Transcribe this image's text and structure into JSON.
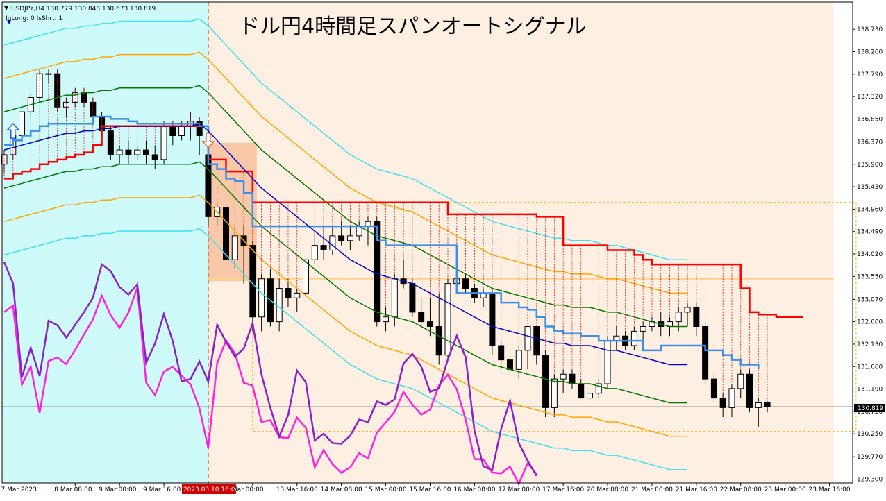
{
  "header": {
    "symbol_line": "USDJPY,H4  130.779 130.848 130.673 130.819",
    "indicator_line": "InLong: 0 IsShrt: 1"
  },
  "title": "ドル円4時間足スパンオートシグナル",
  "price_badge": "130.819",
  "colors": {
    "pre_signal_bg": "#cffafa",
    "zone_bg": "#fdf0e2",
    "entry_box": "#f8c8a8",
    "bull_candle": "#ffffff",
    "bear_candle": "#000000",
    "span_red": "#ff0000",
    "kijun_blue": "#3b8eea",
    "ma_navy": "#0000c8",
    "bb_green": "#007800",
    "bb_orange": "#ffa500",
    "bb_cyan": "#40e0f0",
    "chikou_magenta": "#ff20e0",
    "chikou_purple": "#8a20c8",
    "signal_line": "#e00000"
  },
  "chart_data": {
    "type": "candlestick",
    "symbol": "USDJPY",
    "timeframe": "H4",
    "y_ticks": [
      138.73,
      138.26,
      137.79,
      137.32,
      136.85,
      136.37,
      135.9,
      135.43,
      134.96,
      134.49,
      134.02,
      133.55,
      133.07,
      132.6,
      132.13,
      131.66,
      131.19,
      130.72,
      130.25,
      129.77,
      129.3
    ],
    "y_tick_labels": [
      "138.730",
      "138.260",
      "137.790",
      "137.320",
      "136.850",
      "136.370",
      "135.900",
      "135.430",
      "134.960",
      "134.490",
      "134.020",
      "133.550",
      "133.070",
      "132.600",
      "132.130",
      "131.660",
      "131.190",
      "130.720",
      "130.250",
      "129.770",
      "129.300"
    ],
    "ylim": [
      129.22,
      139.3
    ],
    "x_labels": [
      {
        "bar": 2,
        "text": "7 Mar 2023"
      },
      {
        "bar": 8,
        "text": "8 Mar 08:00"
      },
      {
        "bar": 13,
        "text": "9 Mar 00:00"
      },
      {
        "bar": 18,
        "text": "9 Mar 16:00"
      },
      {
        "bar": 23,
        "text": "2023.03.10 16:00",
        "highlight": true
      },
      {
        "bar": 28,
        "text": "Mar 00:00"
      },
      {
        "bar": 33,
        "text": "13 Mar 16:00"
      },
      {
        "bar": 38,
        "text": "14 Mar 08:00"
      },
      {
        "bar": 43,
        "text": "15 Mar 00:00"
      },
      {
        "bar": 48,
        "text": "15 Mar 16:00"
      },
      {
        "bar": 53,
        "text": "16 Mar 08:00"
      },
      {
        "bar": 58,
        "text": "17 Mar 00:00"
      },
      {
        "bar": 63,
        "text": "17 Mar 16:00"
      },
      {
        "bar": 68,
        "text": "20 Mar 08:00"
      },
      {
        "bar": 73,
        "text": "21 Mar 00:00"
      },
      {
        "bar": 78,
        "text": "21 Mar 16:00"
      },
      {
        "bar": 83,
        "text": "22 Mar 08:00"
      },
      {
        "bar": 88,
        "text": "23 Mar 00:00"
      },
      {
        "bar": 93,
        "text": "23 Mar 16:00"
      }
    ],
    "signal_bar": 23,
    "buy_arrow": {
      "bar": 1,
      "price": 136.55
    },
    "sell_arrow": {
      "bar": 23,
      "price": 136.45
    },
    "entry_box": {
      "from_bar": 23,
      "to_bar": 28,
      "top": 136.35,
      "bottom": 133.45
    },
    "zone_box": {
      "from_bar": 28,
      "to_bar": 96,
      "top": 135.1,
      "bottom": 130.3
    },
    "hline_orange": 133.5,
    "candles": [
      [
        135.9,
        136.2,
        135.7,
        136.1
      ],
      [
        136.1,
        136.6,
        136.0,
        136.5
      ],
      [
        136.5,
        137.2,
        136.4,
        137.0
      ],
      [
        137.0,
        137.4,
        136.9,
        137.3
      ],
      [
        137.3,
        137.9,
        137.2,
        137.8
      ],
      [
        137.8,
        137.9,
        137.6,
        137.8
      ],
      [
        137.8,
        137.9,
        137.0,
        137.1
      ],
      [
        137.1,
        137.3,
        136.9,
        137.2
      ],
      [
        137.2,
        137.5,
        137.1,
        137.4
      ],
      [
        137.4,
        137.5,
        137.1,
        137.2
      ],
      [
        137.2,
        137.3,
        136.8,
        136.9
      ],
      [
        136.9,
        137.0,
        136.5,
        136.6
      ],
      [
        136.6,
        136.7,
        136.0,
        136.1
      ],
      [
        136.1,
        136.3,
        135.9,
        136.2
      ],
      [
        136.2,
        136.4,
        135.9,
        136.1
      ],
      [
        136.1,
        136.3,
        136.0,
        136.2
      ],
      [
        136.2,
        136.4,
        135.9,
        136.1
      ],
      [
        136.1,
        136.3,
        135.8,
        136.0
      ],
      [
        136.0,
        136.8,
        135.9,
        136.7
      ],
      [
        136.7,
        136.8,
        136.3,
        136.5
      ],
      [
        136.5,
        136.8,
        136.4,
        136.7
      ],
      [
        136.7,
        137.0,
        136.4,
        136.8
      ],
      [
        136.8,
        136.9,
        136.1,
        136.5
      ],
      [
        136.1,
        136.2,
        134.6,
        134.8
      ],
      [
        134.8,
        135.1,
        134.6,
        135.0
      ],
      [
        135.0,
        135.1,
        133.8,
        133.9
      ],
      [
        133.9,
        134.6,
        133.7,
        134.4
      ],
      [
        134.4,
        134.6,
        133.4,
        134.2
      ],
      [
        134.2,
        134.3,
        132.4,
        132.7
      ],
      [
        132.7,
        133.6,
        132.4,
        133.5
      ],
      [
        133.5,
        133.7,
        132.5,
        132.6
      ],
      [
        132.6,
        133.5,
        132.4,
        133.3
      ],
      [
        133.3,
        133.5,
        132.9,
        133.1
      ],
      [
        133.1,
        133.3,
        132.8,
        133.2
      ],
      [
        133.2,
        134.0,
        133.1,
        133.9
      ],
      [
        133.9,
        134.5,
        133.8,
        134.2
      ],
      [
        134.2,
        134.6,
        133.9,
        134.1
      ],
      [
        134.1,
        134.6,
        134.0,
        134.4
      ],
      [
        134.4,
        134.7,
        134.2,
        134.3
      ],
      [
        134.3,
        134.6,
        134.1,
        134.4
      ],
      [
        134.4,
        134.7,
        134.3,
        134.6
      ],
      [
        134.6,
        134.8,
        134.2,
        134.7
      ],
      [
        134.7,
        134.8,
        132.5,
        132.6
      ],
      [
        132.6,
        132.9,
        132.4,
        132.7
      ],
      [
        132.7,
        133.6,
        132.5,
        133.5
      ],
      [
        133.5,
        133.9,
        133.3,
        133.4
      ],
      [
        133.4,
        133.5,
        132.7,
        132.8
      ],
      [
        132.8,
        133.1,
        132.5,
        132.6
      ],
      [
        132.6,
        133.1,
        132.3,
        132.5
      ],
      [
        132.5,
        133.2,
        131.7,
        131.9
      ],
      [
        131.9,
        133.5,
        131.8,
        133.4
      ],
      [
        133.4,
        133.6,
        133.2,
        133.5
      ],
      [
        133.5,
        133.6,
        133.2,
        133.3
      ],
      [
        133.3,
        133.4,
        133.0,
        133.1
      ],
      [
        133.1,
        133.3,
        132.9,
        133.2
      ],
      [
        133.2,
        133.3,
        131.9,
        132.1
      ],
      [
        132.1,
        132.2,
        131.6,
        131.8
      ],
      [
        131.8,
        131.9,
        131.5,
        131.6
      ],
      [
        131.6,
        132.1,
        131.4,
        132.0
      ],
      [
        132.0,
        132.5,
        131.6,
        132.5
      ],
      [
        132.5,
        132.5,
        131.7,
        131.9
      ],
      [
        131.9,
        132.0,
        130.6,
        130.8
      ],
      [
        130.8,
        131.5,
        130.6,
        131.4
      ],
      [
        131.4,
        131.6,
        131.1,
        131.5
      ],
      [
        131.5,
        131.6,
        131.2,
        131.3
      ],
      [
        131.3,
        131.4,
        131.1,
        131.0
      ],
      [
        131.0,
        131.3,
        130.9,
        131.1
      ],
      [
        131.1,
        131.4,
        131.0,
        131.3
      ],
      [
        131.3,
        132.3,
        131.2,
        132.2
      ],
      [
        132.2,
        132.5,
        132.0,
        132.3
      ],
      [
        132.3,
        132.4,
        132.0,
        132.1
      ],
      [
        132.1,
        132.5,
        132.0,
        132.4
      ],
      [
        132.4,
        132.6,
        132.2,
        132.5
      ],
      [
        132.5,
        132.7,
        132.4,
        132.6
      ],
      [
        132.6,
        132.8,
        132.3,
        132.5
      ],
      [
        132.5,
        132.7,
        132.3,
        132.6
      ],
      [
        132.6,
        132.9,
        132.4,
        132.8
      ],
      [
        132.8,
        133.0,
        132.5,
        132.9
      ],
      [
        132.9,
        133.0,
        132.3,
        132.5
      ],
      [
        132.5,
        132.6,
        131.3,
        131.4
      ],
      [
        131.4,
        131.5,
        130.9,
        131.0
      ],
      [
        131.0,
        131.1,
        130.6,
        130.8
      ],
      [
        130.8,
        131.3,
        130.6,
        131.2
      ],
      [
        131.2,
        131.6,
        131.0,
        131.5
      ],
      [
        131.5,
        131.6,
        130.7,
        130.8
      ],
      [
        130.8,
        131.0,
        130.4,
        130.9
      ],
      [
        130.9,
        130.9,
        130.7,
        130.82
      ]
    ],
    "series": [
      {
        "key": "span",
        "values": [
          135.6,
          135.7,
          135.75,
          135.8,
          135.9,
          135.95,
          136.0,
          136.05,
          136.1,
          136.15,
          136.3,
          136.7,
          136.7,
          136.7,
          136.7,
          136.7,
          136.7,
          136.7,
          136.7,
          136.7,
          136.7,
          136.7,
          136.7,
          136.0,
          136.0,
          135.75,
          135.75,
          135.75,
          135.1,
          135.1,
          135.1,
          135.1,
          135.1,
          135.1,
          135.1,
          135.1,
          135.1,
          135.1,
          135.1,
          135.1,
          135.1,
          135.1,
          135.1,
          135.1,
          135.1,
          135.1,
          135.1,
          135.1,
          135.1,
          135.1,
          134.85,
          134.85,
          134.85,
          134.85,
          134.85,
          134.85,
          134.85,
          134.85,
          134.85,
          134.85,
          134.8,
          134.8,
          134.8,
          134.2,
          134.2,
          134.2,
          134.2,
          134.2,
          134.1,
          134.1,
          134.1,
          134.0,
          133.9,
          133.8,
          133.8,
          133.8,
          133.8,
          133.8,
          133.8,
          133.8,
          133.8,
          133.8,
          133.8,
          133.3,
          132.8,
          132.75,
          132.75,
          132.7,
          132.7,
          132.7,
          132.7
        ]
      },
      {
        "key": "kijun",
        "values": [
          136.3,
          136.4,
          136.5,
          136.6,
          136.7,
          136.75,
          136.75,
          136.75,
          136.75,
          136.75,
          136.9,
          136.9,
          136.85,
          136.85,
          136.8,
          136.75,
          136.75,
          136.75,
          136.75,
          136.75,
          136.75,
          136.75,
          136.7,
          135.9,
          135.8,
          135.6,
          135.55,
          135.3,
          134.6,
          134.6,
          134.6,
          134.6,
          134.6,
          134.6,
          134.6,
          134.6,
          134.6,
          134.6,
          134.6,
          134.6,
          134.6,
          134.6,
          134.3,
          134.2,
          134.2,
          134.2,
          134.2,
          134.2,
          134.2,
          134.2,
          134.2,
          133.2,
          133.2,
          133.2,
          133.2,
          133.2,
          133.0,
          133.0,
          132.9,
          132.85,
          132.7,
          132.5,
          132.4,
          132.35,
          132.35,
          132.3,
          132.3,
          132.2,
          132.2,
          132.2,
          132.2,
          132.2,
          132.0,
          132.0,
          132.1,
          132.1,
          132.1,
          132.1,
          132.1,
          132.0,
          132.0,
          131.9,
          131.8,
          131.7,
          131.7,
          131.6
        ]
      },
      {
        "key": "ma",
        "values": [
          136.2,
          136.25,
          136.3,
          136.35,
          136.4,
          136.45,
          136.5,
          136.55,
          136.55,
          136.6,
          136.6,
          136.65,
          136.65,
          136.7,
          136.7,
          136.7,
          136.7,
          136.7,
          136.7,
          136.7,
          136.7,
          136.7,
          136.75,
          136.6,
          136.4,
          136.2,
          136.0,
          135.8,
          135.6,
          135.4,
          135.25,
          135.1,
          134.95,
          134.8,
          134.65,
          134.5,
          134.35,
          134.2,
          134.05,
          133.9,
          133.8,
          133.7,
          133.6,
          133.55,
          133.5,
          133.45,
          133.4,
          133.3,
          133.2,
          133.1,
          133.0,
          132.9,
          132.8,
          132.7,
          132.6,
          132.5,
          132.45,
          132.4,
          132.35,
          132.3,
          132.25,
          132.2,
          132.15,
          132.15,
          132.1,
          132.1,
          132.1,
          132.05,
          132.0,
          132.0,
          131.95,
          131.9,
          131.85,
          131.8,
          131.75,
          131.7,
          131.7,
          131.7
        ]
      }
    ]
  }
}
